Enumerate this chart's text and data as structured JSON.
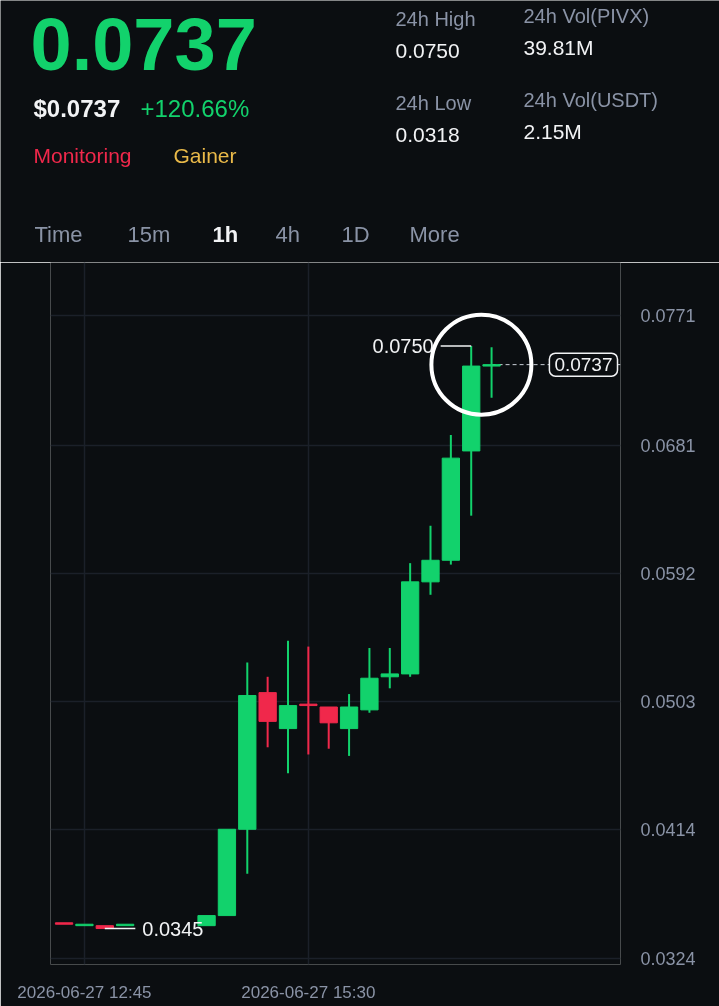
{
  "chart_data": [
    {
      "type": "other",
      "title": "0.0737",
      "annotations": [
        "$0.0737",
        "+120.66%",
        "Monitoring",
        "Gainer",
        "24h High",
        "0.0750",
        "24h Low",
        "0.0318",
        "24h Vol(PIVX)",
        "39.81M",
        "24h Vol(USDT)",
        "2.15M",
        "Time",
        "15m",
        "1h",
        "4h",
        "1D",
        "More"
      ]
    },
    {
      "type": "candlestick",
      "x": [
        "2026-06-27T12:30",
        "2026-06-27T12:45",
        "2026-06-27T13:00",
        "2026-06-27T13:15",
        "2026-06-27T14:15",
        "2026-06-27T14:30",
        "2026-06-27T14:45",
        "2026-06-27T15:00",
        "2026-06-27T15:15",
        "2026-06-27T15:30",
        "2026-06-27T15:45",
        "2026-06-27T16:00",
        "2026-06-27T16:15",
        "2026-06-27T16:30",
        "2026-06-27T16:45",
        "2026-06-27T17:00",
        "2026-06-27T17:15",
        "2026-06-27T17:30",
        "2026-06-27T17:45"
      ],
      "ohlc": [
        [
          0.0349,
          0.0349,
          0.0348,
          0.0348
        ],
        [
          0.0347,
          0.0348,
          0.0347,
          0.0348
        ],
        [
          0.0347,
          0.0347,
          0.0345,
          0.0345
        ],
        [
          0.0347,
          0.0348,
          0.0347,
          0.0348
        ],
        [
          0.0347,
          0.0354,
          0.0347,
          0.0354
        ],
        [
          0.0354,
          0.0414,
          0.0354,
          0.0414
        ],
        [
          0.0414,
          0.053,
          0.0383,
          0.0507
        ],
        [
          0.0509,
          0.052,
          0.0471,
          0.0489
        ],
        [
          0.0484,
          0.0545,
          0.0453,
          0.05
        ],
        [
          0.0501,
          0.0541,
          0.0466,
          0.05
        ],
        [
          0.0499,
          0.0499,
          0.047,
          0.0488
        ],
        [
          0.0484,
          0.0508,
          0.0465,
          0.0499
        ],
        [
          0.0497,
          0.054,
          0.0495,
          0.0519
        ],
        [
          0.052,
          0.054,
          0.0512,
          0.0522
        ],
        [
          0.0522,
          0.0599,
          0.052,
          0.0586
        ],
        [
          0.0586,
          0.0625,
          0.0577,
          0.0601
        ],
        [
          0.0601,
          0.0688,
          0.0598,
          0.0672
        ],
        [
          0.0677,
          0.075,
          0.0632,
          0.0736
        ],
        [
          0.0736,
          0.0749,
          0.0714,
          0.0737
        ]
      ],
      "colors": [
        "#f0284b",
        "#12d26c",
        "#f0284b",
        "#12d26c",
        "#12d26c",
        "#12d26c",
        "#12d26c",
        "#f0284b",
        "#12d26c",
        "#f0284b",
        "#f0284b",
        "#12d26c",
        "#12d26c",
        "#12d26c",
        "#12d26c",
        "#12d26c",
        "#12d26c",
        "#12d26c",
        "#12d26c"
      ],
      "xlim": [
        "2026-06-27T12:20",
        "2026-06-27T19:20"
      ],
      "ylim": [
        0.032,
        0.0808
      ],
      "xticks": [
        {
          "value": "2026-06-27T12:45",
          "label": "2026-06-27 12:45"
        },
        {
          "value": "2026-06-27T15:30",
          "label": "2026-06-27 15:30"
        }
      ],
      "yticks": [
        0.0324,
        0.0414,
        0.0503,
        0.0592,
        0.0681,
        0.0771
      ],
      "grid": true,
      "ref_lines": [
        {
          "axis": "y",
          "value": 0.0737,
          "label": "0.0737",
          "line_style": "dashed",
          "color": "#c9ced6"
        }
      ],
      "annotations": [
        {
          "text": "0.0750",
          "x": "2026-06-27T17:30",
          "y": 0.075
        },
        {
          "text": "0.0345",
          "x": "2026-06-27T13:00",
          "y": 0.0345
        }
      ]
    }
  ]
}
